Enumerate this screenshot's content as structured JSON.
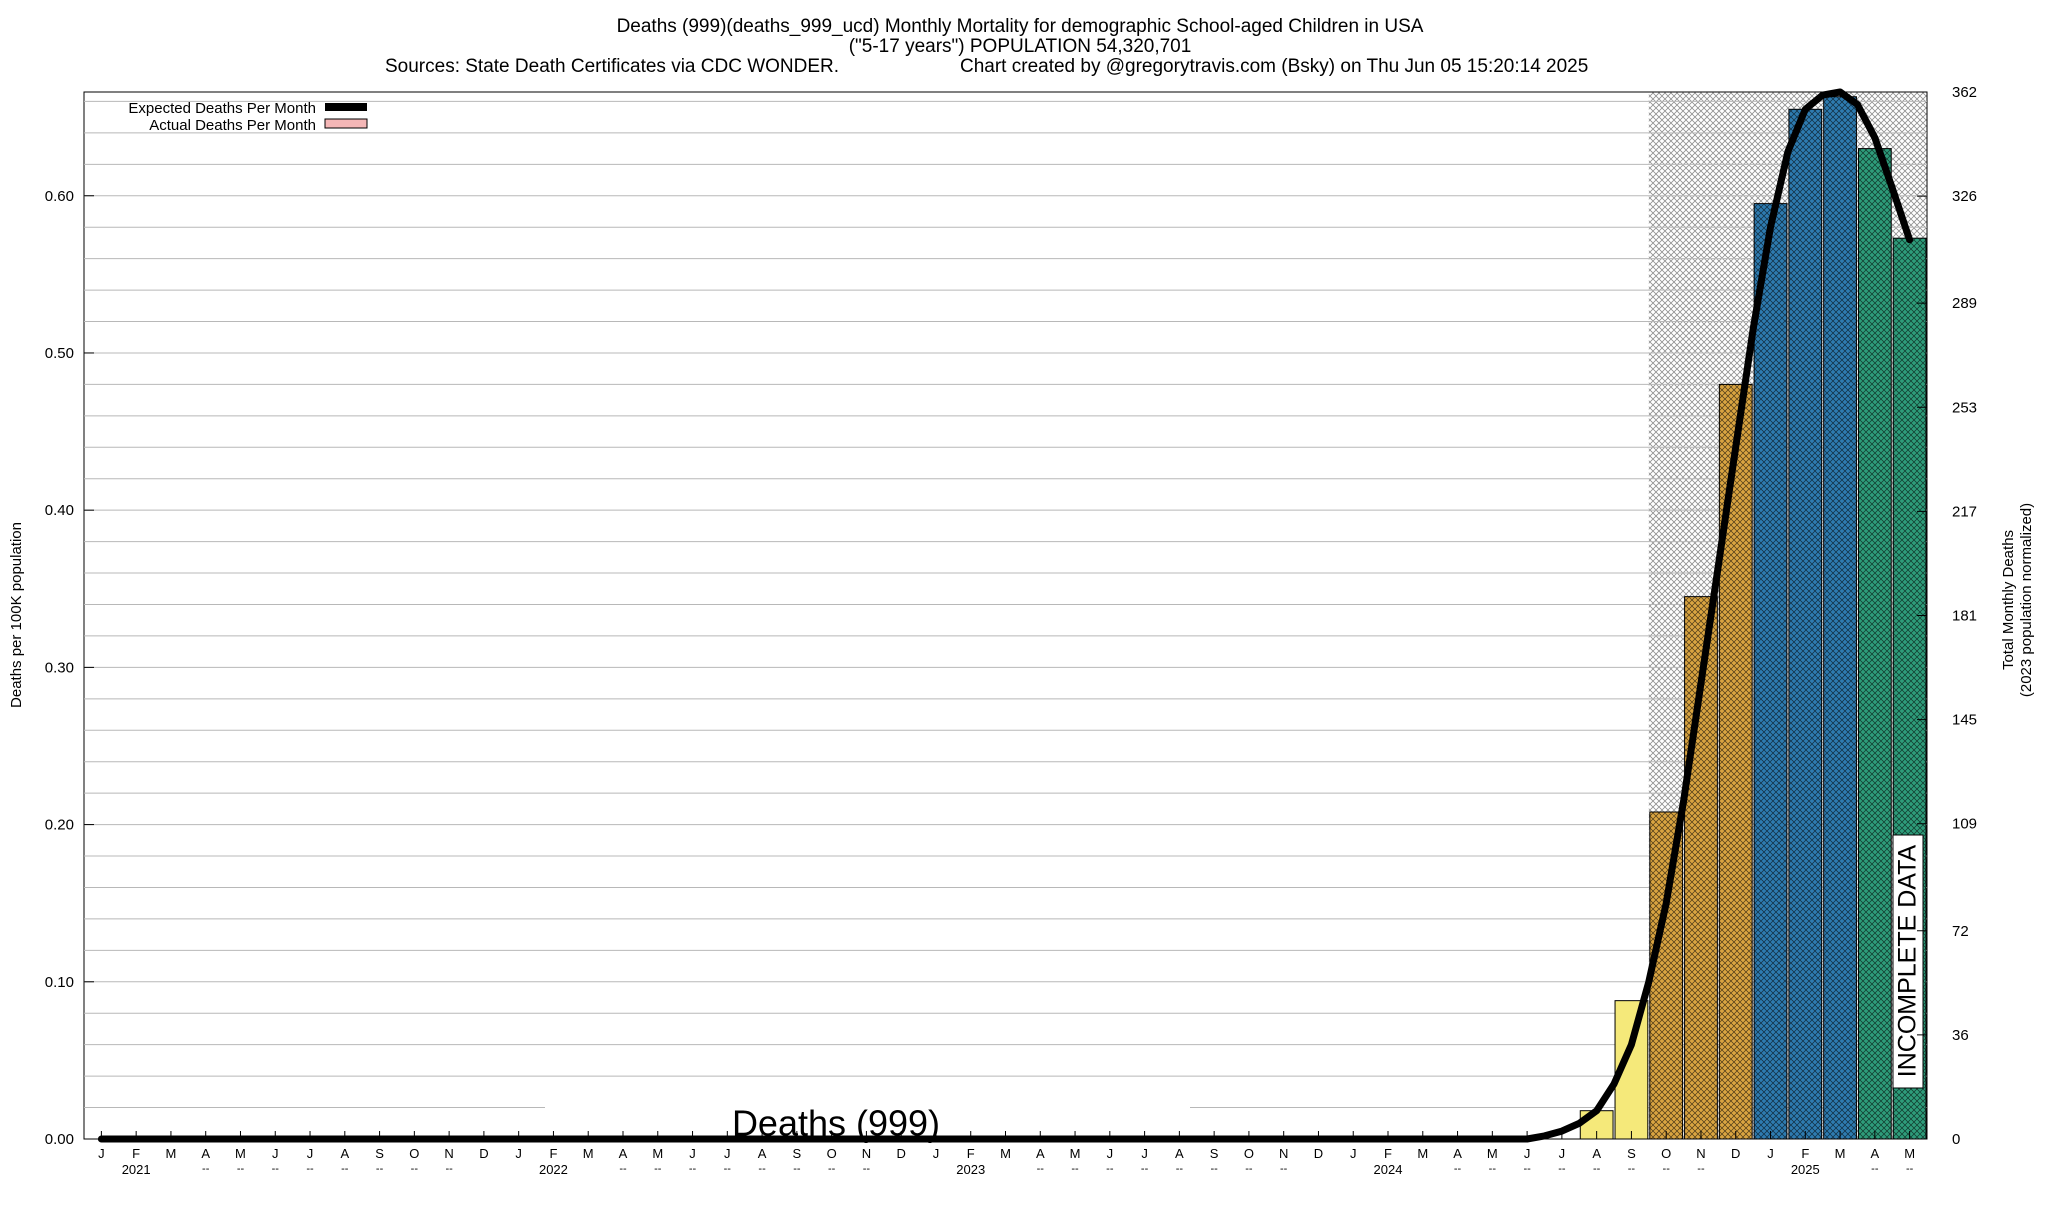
{
  "chart_data": {
    "type": "bar",
    "title": "Deaths (999)(deaths_999_ucd) Monthly Mortality for demographic School-aged Children in USA",
    "subtitle": "(\"5-17 years\") POPULATION 54,320,701",
    "sources": "Sources: State Death Certificates via CDC WONDER.",
    "credit": "Chart created by @gregorytravis.com (Bsky) on Thu Jun 05 15:20:14 2025",
    "ylabel": "Deaths per 100K population",
    "y2label_line1": "Total Monthly Deaths",
    "y2label_line2": "(2023 population normalized)",
    "watermark": "Deaths (999)",
    "incomplete_label": "INCOMPLETE DATA",
    "ylim": [
      0,
      0.666
    ],
    "y_ticks": [
      "0.00",
      "0.10",
      "0.20",
      "0.30",
      "0.40",
      "0.50",
      "0.60"
    ],
    "y2_ticks": [
      "0",
      "36",
      "72",
      "109",
      "145",
      "181",
      "217",
      "253",
      "289",
      "326",
      "362"
    ],
    "legend": {
      "placement": "top-left",
      "entries": [
        {
          "label": "Expected Deaths Per Month",
          "color": "#000000"
        },
        {
          "label": "Actual Deaths Per Month",
          "color": "#f4b6b6"
        }
      ]
    },
    "month_labels": [
      "J",
      "F",
      "M",
      "A",
      "M",
      "J",
      "J",
      "A",
      "S",
      "O",
      "N",
      "D",
      "J",
      "F",
      "M",
      "A",
      "M",
      "J",
      "J",
      "A",
      "S",
      "O",
      "N",
      "D",
      "J",
      "F",
      "M",
      "A",
      "M",
      "J",
      "J",
      "A",
      "S",
      "O",
      "N",
      "D",
      "J",
      "F",
      "M",
      "A",
      "M",
      "J",
      "J",
      "A",
      "S",
      "O",
      "N",
      "D",
      "J",
      "F",
      "M",
      "A",
      "M"
    ],
    "year_labels": [
      {
        "label": "2021",
        "index": 1
      },
      {
        "label": "2022",
        "index": 13
      },
      {
        "label": "2023",
        "index": 25
      },
      {
        "label": "2024",
        "index": 37
      },
      {
        "label": "2025",
        "index": 49
      }
    ],
    "tick_mark": "--",
    "incomplete_start_index": 45,
    "bars": [
      {
        "index": 43,
        "value": 0.018,
        "color": "#f5e97a"
      },
      {
        "index": 44,
        "value": 0.088,
        "color": "#f5e97a"
      },
      {
        "index": 45,
        "value": 0.208,
        "color": "#d9a441"
      },
      {
        "index": 46,
        "value": 0.345,
        "color": "#d9a441"
      },
      {
        "index": 47,
        "value": 0.48,
        "color": "#d9a441"
      },
      {
        "index": 48,
        "value": 0.595,
        "color": "#2e7bb0"
      },
      {
        "index": 49,
        "value": 0.655,
        "color": "#2e7bb0"
      },
      {
        "index": 50,
        "value": 0.663,
        "color": "#2e7bb0"
      },
      {
        "index": 51,
        "value": 0.63,
        "color": "#2e9c7a"
      },
      {
        "index": 52,
        "value": 0.573,
        "color": "#2e9c7a"
      }
    ],
    "expected_line": [
      {
        "x": 0,
        "y": 0.0
      },
      {
        "x": 41,
        "y": 0.0
      },
      {
        "x": 41.5,
        "y": 0.002
      },
      {
        "x": 42,
        "y": 0.005
      },
      {
        "x": 42.5,
        "y": 0.01
      },
      {
        "x": 43,
        "y": 0.018
      },
      {
        "x": 43.5,
        "y": 0.035
      },
      {
        "x": 44,
        "y": 0.06
      },
      {
        "x": 44.5,
        "y": 0.1
      },
      {
        "x": 45,
        "y": 0.15
      },
      {
        "x": 45.5,
        "y": 0.215
      },
      {
        "x": 46,
        "y": 0.29
      },
      {
        "x": 46.5,
        "y": 0.365
      },
      {
        "x": 47,
        "y": 0.44
      },
      {
        "x": 47.5,
        "y": 0.515
      },
      {
        "x": 48,
        "y": 0.58
      },
      {
        "x": 48.5,
        "y": 0.628
      },
      {
        "x": 49,
        "y": 0.655
      },
      {
        "x": 49.5,
        "y": 0.664
      },
      {
        "x": 50,
        "y": 0.666
      },
      {
        "x": 50.5,
        "y": 0.658
      },
      {
        "x": 51,
        "y": 0.637
      },
      {
        "x": 51.5,
        "y": 0.605
      },
      {
        "x": 52,
        "y": 0.572
      }
    ]
  }
}
